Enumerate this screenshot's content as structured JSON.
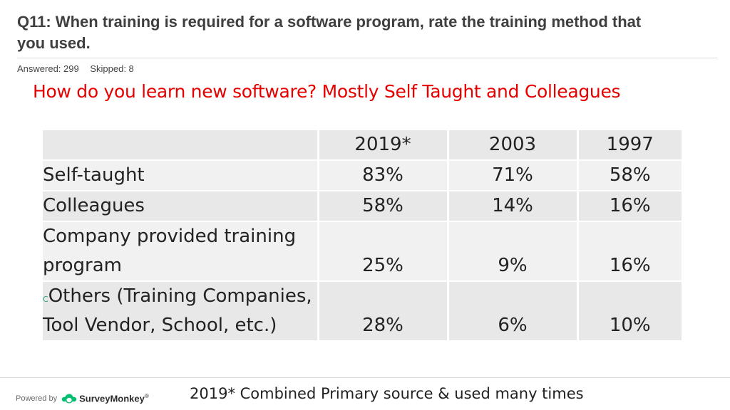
{
  "question": {
    "title": "Q11: When training is required for a software program, rate the training method that you used.",
    "answered": "Answered: 299",
    "skipped": "Skipped: 8"
  },
  "subtitle": "How do you learn new software?  Mostly Self Taught and Colleagues",
  "table": {
    "headers": [
      "",
      "2019*",
      "2003",
      "1997"
    ],
    "rows": [
      {
        "label": "Self-taught",
        "values": [
          "83%",
          "71%",
          "58%"
        ]
      },
      {
        "label": "Colleagues",
        "values": [
          "58%",
          "14%",
          "16%"
        ]
      },
      {
        "label": "Company provided training program",
        "values": [
          "25%",
          "9%",
          "16%"
        ]
      },
      {
        "prefix": "C",
        "label": "Others (Training Companies, Tool Vendor, School, etc.)",
        "values": [
          "28%",
          "6%",
          "10%"
        ]
      }
    ]
  },
  "footer": {
    "powered_by": "Powered by",
    "brand": "SurveyMonkey",
    "trademark": "®",
    "note": "2019* Combined Primary source & used many times"
  },
  "colors": {
    "subtitle": "#e60000",
    "brand_green": "#00bf6f",
    "table_row": "#e8e8e8"
  },
  "icons": {
    "brand_logo": "surveymonkey-logo-icon"
  }
}
